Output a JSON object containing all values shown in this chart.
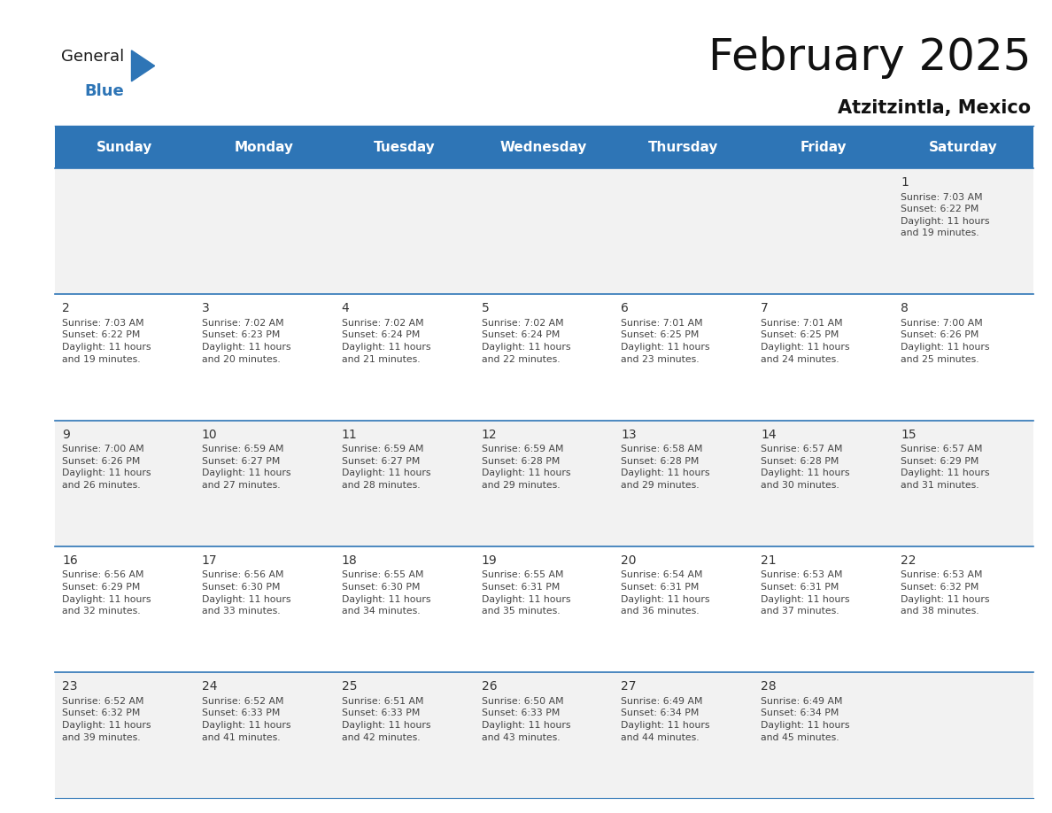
{
  "title": "February 2025",
  "subtitle": "Atzitzintla, Mexico",
  "header_bg": "#2E75B6",
  "header_text_color": "#FFFFFF",
  "cell_bg_week1": "#F2F2F2",
  "cell_bg_week2": "#FFFFFF",
  "cell_bg_week3": "#F2F2F2",
  "cell_bg_week4": "#FFFFFF",
  "cell_bg_week5": "#F2F2F2",
  "border_color": "#2E75B6",
  "day_number_color": "#333333",
  "cell_text_color": "#444444",
  "days_of_week": [
    "Sunday",
    "Monday",
    "Tuesday",
    "Wednesday",
    "Thursday",
    "Friday",
    "Saturday"
  ],
  "weeks": [
    [
      {
        "day": "",
        "info": ""
      },
      {
        "day": "",
        "info": ""
      },
      {
        "day": "",
        "info": ""
      },
      {
        "day": "",
        "info": ""
      },
      {
        "day": "",
        "info": ""
      },
      {
        "day": "",
        "info": ""
      },
      {
        "day": "1",
        "info": "Sunrise: 7:03 AM\nSunset: 6:22 PM\nDaylight: 11 hours\nand 19 minutes."
      }
    ],
    [
      {
        "day": "2",
        "info": "Sunrise: 7:03 AM\nSunset: 6:22 PM\nDaylight: 11 hours\nand 19 minutes."
      },
      {
        "day": "3",
        "info": "Sunrise: 7:02 AM\nSunset: 6:23 PM\nDaylight: 11 hours\nand 20 minutes."
      },
      {
        "day": "4",
        "info": "Sunrise: 7:02 AM\nSunset: 6:24 PM\nDaylight: 11 hours\nand 21 minutes."
      },
      {
        "day": "5",
        "info": "Sunrise: 7:02 AM\nSunset: 6:24 PM\nDaylight: 11 hours\nand 22 minutes."
      },
      {
        "day": "6",
        "info": "Sunrise: 7:01 AM\nSunset: 6:25 PM\nDaylight: 11 hours\nand 23 minutes."
      },
      {
        "day": "7",
        "info": "Sunrise: 7:01 AM\nSunset: 6:25 PM\nDaylight: 11 hours\nand 24 minutes."
      },
      {
        "day": "8",
        "info": "Sunrise: 7:00 AM\nSunset: 6:26 PM\nDaylight: 11 hours\nand 25 minutes."
      }
    ],
    [
      {
        "day": "9",
        "info": "Sunrise: 7:00 AM\nSunset: 6:26 PM\nDaylight: 11 hours\nand 26 minutes."
      },
      {
        "day": "10",
        "info": "Sunrise: 6:59 AM\nSunset: 6:27 PM\nDaylight: 11 hours\nand 27 minutes."
      },
      {
        "day": "11",
        "info": "Sunrise: 6:59 AM\nSunset: 6:27 PM\nDaylight: 11 hours\nand 28 minutes."
      },
      {
        "day": "12",
        "info": "Sunrise: 6:59 AM\nSunset: 6:28 PM\nDaylight: 11 hours\nand 29 minutes."
      },
      {
        "day": "13",
        "info": "Sunrise: 6:58 AM\nSunset: 6:28 PM\nDaylight: 11 hours\nand 29 minutes."
      },
      {
        "day": "14",
        "info": "Sunrise: 6:57 AM\nSunset: 6:28 PM\nDaylight: 11 hours\nand 30 minutes."
      },
      {
        "day": "15",
        "info": "Sunrise: 6:57 AM\nSunset: 6:29 PM\nDaylight: 11 hours\nand 31 minutes."
      }
    ],
    [
      {
        "day": "16",
        "info": "Sunrise: 6:56 AM\nSunset: 6:29 PM\nDaylight: 11 hours\nand 32 minutes."
      },
      {
        "day": "17",
        "info": "Sunrise: 6:56 AM\nSunset: 6:30 PM\nDaylight: 11 hours\nand 33 minutes."
      },
      {
        "day": "18",
        "info": "Sunrise: 6:55 AM\nSunset: 6:30 PM\nDaylight: 11 hours\nand 34 minutes."
      },
      {
        "day": "19",
        "info": "Sunrise: 6:55 AM\nSunset: 6:31 PM\nDaylight: 11 hours\nand 35 minutes."
      },
      {
        "day": "20",
        "info": "Sunrise: 6:54 AM\nSunset: 6:31 PM\nDaylight: 11 hours\nand 36 minutes."
      },
      {
        "day": "21",
        "info": "Sunrise: 6:53 AM\nSunset: 6:31 PM\nDaylight: 11 hours\nand 37 minutes."
      },
      {
        "day": "22",
        "info": "Sunrise: 6:53 AM\nSunset: 6:32 PM\nDaylight: 11 hours\nand 38 minutes."
      }
    ],
    [
      {
        "day": "23",
        "info": "Sunrise: 6:52 AM\nSunset: 6:32 PM\nDaylight: 11 hours\nand 39 minutes."
      },
      {
        "day": "24",
        "info": "Sunrise: 6:52 AM\nSunset: 6:33 PM\nDaylight: 11 hours\nand 41 minutes."
      },
      {
        "day": "25",
        "info": "Sunrise: 6:51 AM\nSunset: 6:33 PM\nDaylight: 11 hours\nand 42 minutes."
      },
      {
        "day": "26",
        "info": "Sunrise: 6:50 AM\nSunset: 6:33 PM\nDaylight: 11 hours\nand 43 minutes."
      },
      {
        "day": "27",
        "info": "Sunrise: 6:49 AM\nSunset: 6:34 PM\nDaylight: 11 hours\nand 44 minutes."
      },
      {
        "day": "28",
        "info": "Sunrise: 6:49 AM\nSunset: 6:34 PM\nDaylight: 11 hours\nand 45 minutes."
      },
      {
        "day": "",
        "info": ""
      }
    ]
  ],
  "logo_color_general": "#1a1a1a",
  "logo_color_blue": "#2E75B6",
  "title_fontsize": 36,
  "subtitle_fontsize": 15,
  "header_fontsize": 11,
  "day_number_fontsize": 10,
  "cell_text_fontsize": 7.8,
  "fig_width": 11.88,
  "fig_height": 9.18,
  "dpi": 100
}
